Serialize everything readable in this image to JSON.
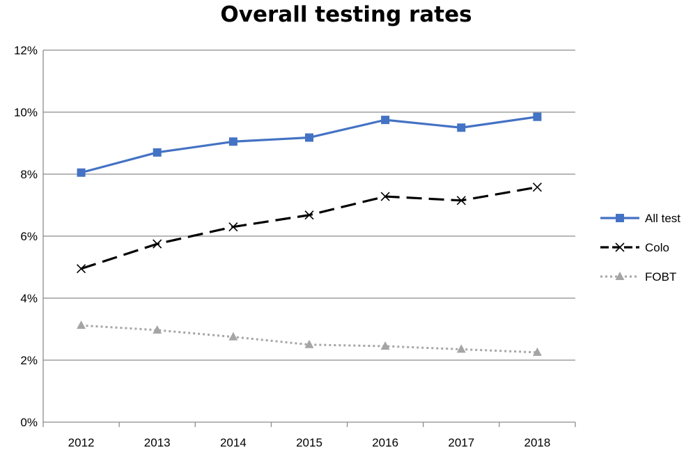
{
  "chart_data": {
    "type": "line",
    "title": "Overall testing rates",
    "xlabel": "",
    "ylabel": "",
    "categories": [
      "2012",
      "2013",
      "2014",
      "2015",
      "2016",
      "2017",
      "2018"
    ],
    "ylim": [
      0,
      12
    ],
    "yticks": [
      0,
      2,
      4,
      6,
      8,
      10,
      12
    ],
    "ytick_suffix": "%",
    "grid": true,
    "legend_position": "right",
    "series": [
      {
        "name": "All test",
        "values": [
          8.05,
          8.7,
          9.05,
          9.18,
          9.75,
          9.5,
          9.85
        ],
        "color": "#4472c4",
        "marker": "square",
        "line": "solid"
      },
      {
        "name": "Colo",
        "values": [
          4.95,
          5.75,
          6.3,
          6.68,
          7.28,
          7.15,
          7.58
        ],
        "color": "#000000",
        "marker": "x",
        "line": "dashed"
      },
      {
        "name": "FOBT",
        "values": [
          3.12,
          2.97,
          2.75,
          2.5,
          2.45,
          2.35,
          2.25
        ],
        "color": "#a5a5a5",
        "marker": "triangle",
        "line": "dotted"
      }
    ]
  }
}
